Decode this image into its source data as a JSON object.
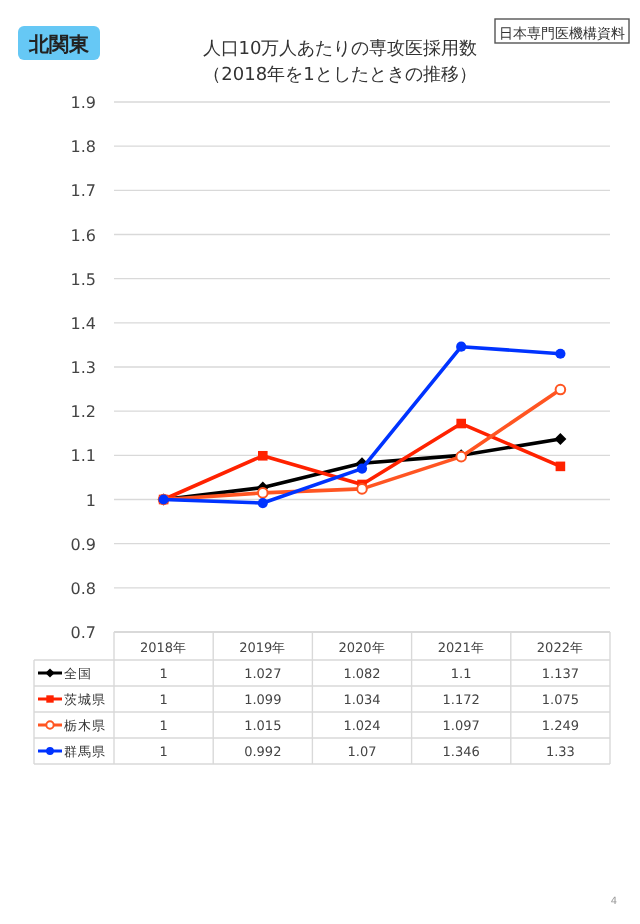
{
  "chart_data": {
    "type": "line",
    "title": "人口10万人あたりの専攻医採用数",
    "subtitle": "（2018年を1としたときの推移）",
    "categories": [
      "2018年",
      "2019年",
      "2020年",
      "2021年",
      "2022年"
    ],
    "ylim": [
      0.7,
      1.9
    ],
    "yticks": [
      0.7,
      0.8,
      0.9,
      1,
      1.1,
      1.2,
      1.3,
      1.4,
      1.5,
      1.6,
      1.7,
      1.8,
      1.9
    ],
    "grid": "y",
    "legend": "bottom",
    "data_labels": true,
    "series": [
      {
        "name": "全国",
        "color": "#000000",
        "marker": "diamond",
        "values": [
          1,
          1.027,
          1.082,
          1.1,
          1.137
        ]
      },
      {
        "name": "茨城県",
        "color": "#ff2200",
        "marker": "square",
        "values": [
          1,
          1.099,
          1.034,
          1.172,
          1.075
        ]
      },
      {
        "name": "栃木県",
        "color": "#ff5522",
        "marker": "open circle",
        "values": [
          1,
          1.015,
          1.024,
          1.097,
          1.249
        ]
      },
      {
        "name": "群馬県",
        "color": "#0033ff",
        "marker": "circle",
        "values": [
          1,
          0.992,
          1.07,
          1.346,
          1.33
        ]
      }
    ],
    "annotations": [
      "北関東",
      "日本専門医機構資料",
      "4"
    ]
  }
}
